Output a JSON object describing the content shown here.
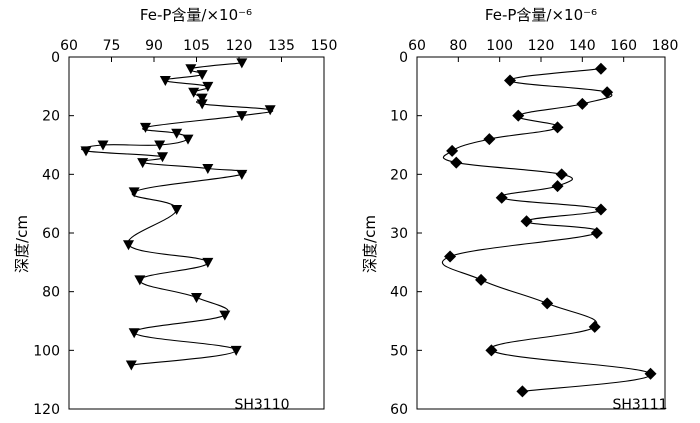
{
  "chart_data": [
    {
      "type": "line",
      "title": "Fe-P含量/×10⁻⁶",
      "ylabel": "深度/cm",
      "site": "SH3110",
      "x_axis_position": "top",
      "y_inverted": true,
      "xlim": [
        60,
        150
      ],
      "ylim": [
        0,
        120
      ],
      "x_ticks": [
        60,
        75,
        90,
        105,
        120,
        135,
        150
      ],
      "y_ticks": [
        0,
        20,
        40,
        60,
        80,
        100,
        120
      ],
      "marker": "triangle-down",
      "line_style": "smoothed",
      "series": [
        {
          "x": [
            121,
            103,
            107,
            94,
            109,
            104,
            107,
            107,
            131,
            121,
            87,
            98,
            102,
            92,
            72,
            66,
            93,
            86,
            109,
            121,
            83,
            98,
            81,
            109,
            85,
            105,
            115,
            83,
            119,
            82
          ],
          "y": [
            2,
            4,
            6,
            8,
            10,
            12,
            14,
            16,
            18,
            20,
            24,
            26,
            28,
            30,
            30,
            32,
            34,
            36,
            38,
            40,
            46,
            52,
            64,
            70,
            76,
            82,
            88,
            94,
            100,
            105
          ]
        }
      ]
    },
    {
      "type": "line",
      "title": "Fe-P含量/×10⁻⁶",
      "ylabel": "深度/cm",
      "site": "SH3111",
      "x_axis_position": "top",
      "y_inverted": true,
      "xlim": [
        60,
        180
      ],
      "ylim": [
        0,
        60
      ],
      "x_ticks": [
        60,
        80,
        100,
        120,
        140,
        160,
        180
      ],
      "y_ticks": [
        0,
        10,
        20,
        30,
        40,
        50,
        60
      ],
      "marker": "diamond",
      "line_style": "smoothed",
      "series": [
        {
          "x": [
            149,
            105,
            152,
            140,
            109,
            128,
            95,
            77,
            79,
            130,
            128,
            101,
            149,
            113,
            147,
            76,
            91,
            123,
            146,
            96,
            173,
            111
          ],
          "y": [
            2,
            4,
            6,
            8,
            10,
            12,
            14,
            16,
            18,
            20,
            22,
            24,
            26,
            28,
            30,
            34,
            38,
            42,
            46,
            50,
            54,
            57
          ]
        }
      ]
    }
  ]
}
